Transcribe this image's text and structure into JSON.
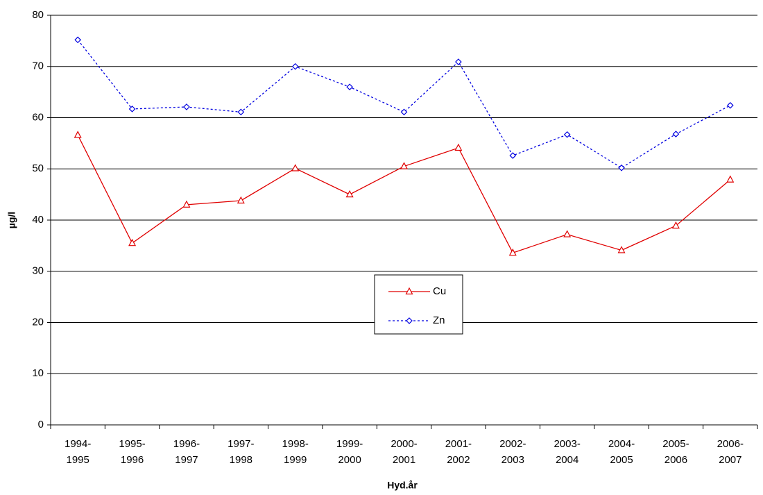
{
  "chart_data": {
    "type": "line",
    "x_label": "Hyd.år",
    "y_label": "µg/l",
    "categories": [
      "1994-1995",
      "1995-1996",
      "1996-1997",
      "1997-1998",
      "1998-1999",
      "1999-2000",
      "2000-2001",
      "2001-2002",
      "2002-2003",
      "2003-2004",
      "2004-2005",
      "2005-2006",
      "2006-2007"
    ],
    "series": [
      {
        "name": "Cu",
        "color": "#e00000",
        "dash": false,
        "marker": "triangle",
        "values": [
          56.6,
          35.5,
          43.0,
          43.8,
          50.1,
          45.0,
          50.5,
          54.1,
          33.6,
          37.2,
          34.1,
          38.9,
          47.9
        ]
      },
      {
        "name": "Zn",
        "color": "#0000e0",
        "dash": true,
        "marker": "diamond",
        "values": [
          75.2,
          61.7,
          62.1,
          61.1,
          70.0,
          66.0,
          61.1,
          70.9,
          52.6,
          56.7,
          50.2,
          56.8,
          62.4
        ]
      }
    ],
    "ylim": [
      0,
      80
    ],
    "yticks": [
      0,
      10,
      20,
      30,
      40,
      50,
      60,
      70,
      80
    ],
    "grid": true,
    "legend": "center"
  }
}
